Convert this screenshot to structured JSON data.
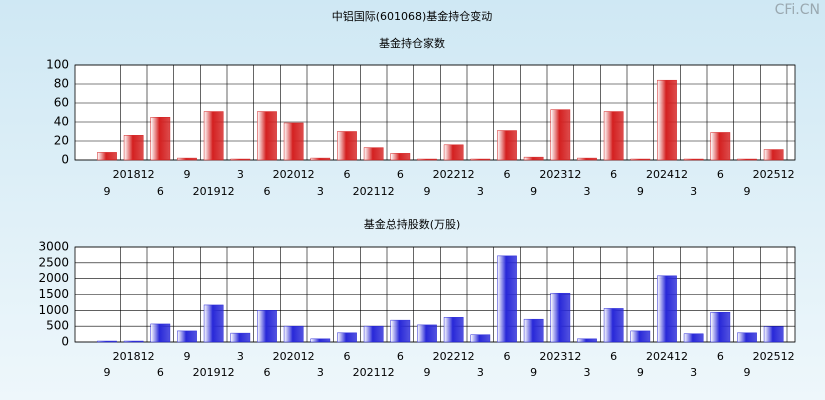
{
  "title": "中铝国际(601068)基金持仓变动",
  "watermark": "CFi.CN",
  "chart_data": [
    {
      "type": "bar",
      "title": "基金持仓家数",
      "categories": [
        "9",
        "201812",
        "6",
        "9",
        "201912",
        "3",
        "6",
        "202012",
        "3",
        "6",
        "202112",
        "6",
        "9",
        "202212",
        "3",
        "6",
        "9",
        "202312",
        "3",
        "6",
        "9",
        "202412",
        "3",
        "6",
        "9",
        "202512"
      ],
      "series": [
        {
          "color": "#d42020",
          "values": [
            8,
            26,
            45,
            2,
            51,
            1,
            51,
            39,
            2,
            30,
            13,
            7,
            1,
            16,
            1,
            31,
            3,
            53,
            2,
            51,
            1,
            84,
            1,
            29,
            1,
            11
          ]
        }
      ],
      "ylim": [
        0,
        100
      ],
      "yticks": [
        0,
        20,
        40,
        60,
        80,
        100
      ],
      "grid": true
    },
    {
      "type": "bar",
      "title": "基金总持股数(万股)",
      "categories": [
        "9",
        "201812",
        "6",
        "9",
        "201912",
        "3",
        "6",
        "202012",
        "3",
        "6",
        "202112",
        "6",
        "9",
        "202212",
        "3",
        "6",
        "9",
        "202312",
        "3",
        "6",
        "9",
        "202412",
        "3",
        "6",
        "9",
        "202512"
      ],
      "series": [
        {
          "color": "#2828d8",
          "values": [
            30,
            30,
            570,
            350,
            1170,
            280,
            1000,
            500,
            100,
            290,
            500,
            690,
            540,
            780,
            230,
            2720,
            720,
            1540,
            100,
            1060,
            350,
            2090,
            260,
            940,
            290,
            490
          ]
        }
      ],
      "ylim": [
        0,
        3000
      ],
      "yticks": [
        0,
        500,
        1000,
        1500,
        2000,
        2500,
        3000
      ],
      "grid": true
    }
  ]
}
